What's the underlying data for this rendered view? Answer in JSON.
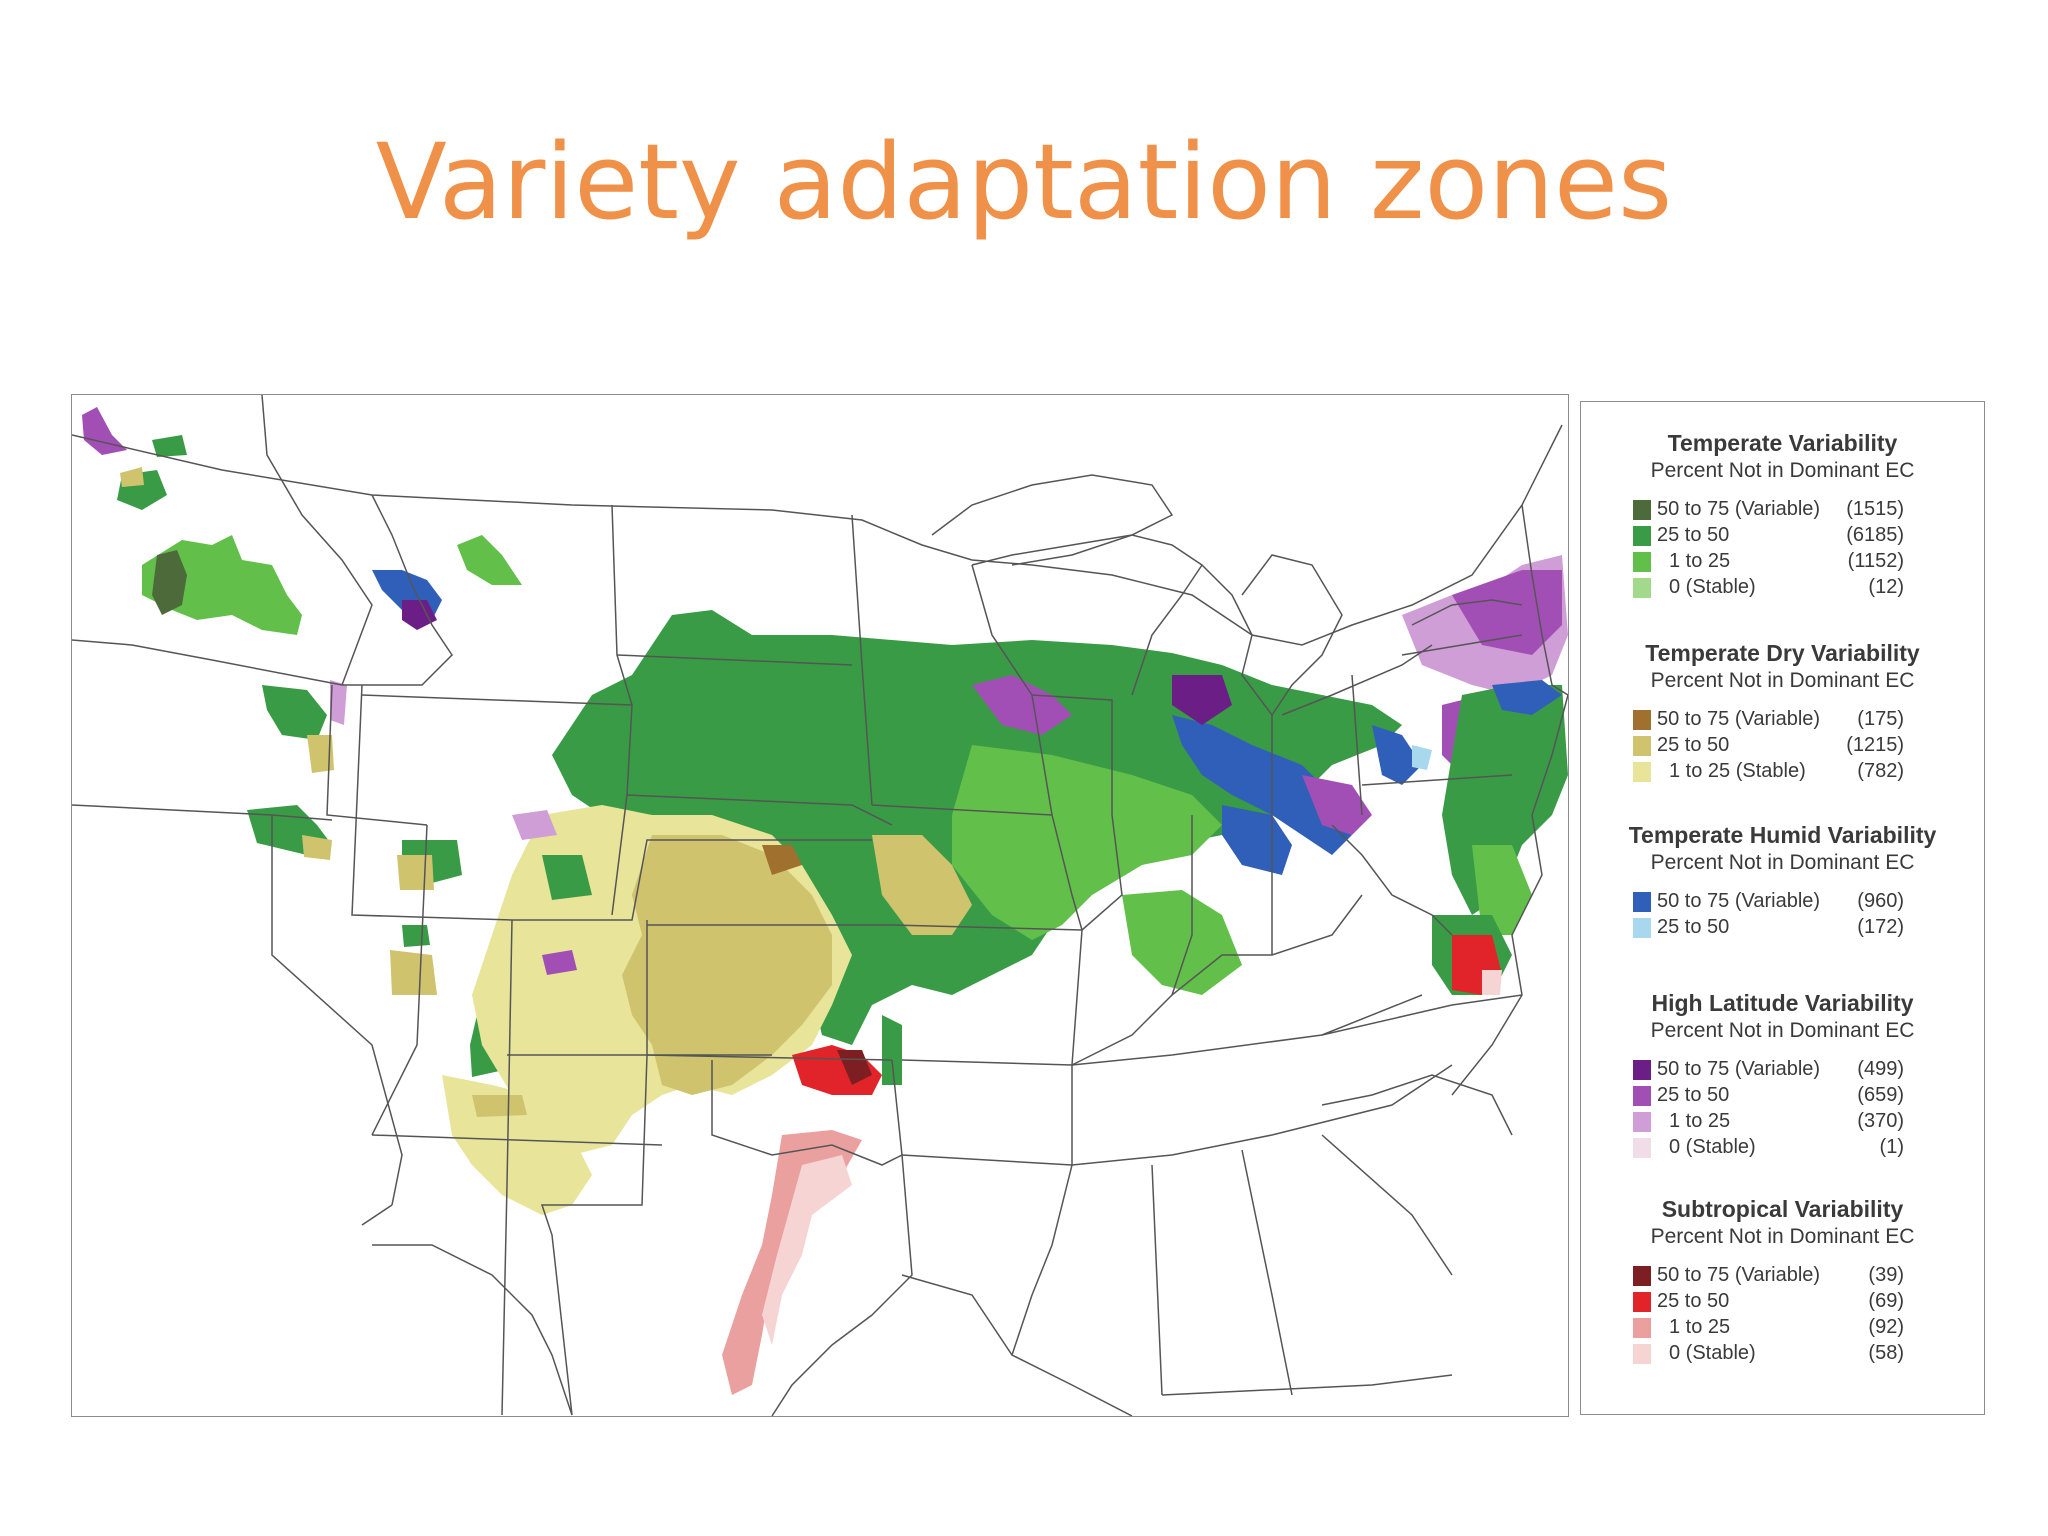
{
  "slide": {
    "title": "Variety adaptation zones"
  },
  "colors": {
    "title": "#f0914a",
    "state_border": "#555555",
    "temperate": [
      "#4d6b3a",
      "#3a9b46",
      "#62c04a",
      "#a3d98a"
    ],
    "temperate_dry": [
      "#a0702e",
      "#cfc36e",
      "#e8e49a"
    ],
    "temperate_humid": [
      "#2f5fb8",
      "#a8d8ee"
    ],
    "high_latitude": [
      "#6b1e86",
      "#a24fb5",
      "#cf9ed6",
      "#f0dde8"
    ],
    "subtropical": [
      "#7d1f22",
      "#e0242a",
      "#eba0a0",
      "#f6d4d4"
    ]
  },
  "legend": {
    "sections": [
      {
        "title": "Temperate Variability",
        "subtitle": "Percent Not in Dominant EC",
        "rows": [
          {
            "label": "50 to 75 (Variable)",
            "count": "(1515)",
            "color": "#4d6b3a"
          },
          {
            "label": "25 to 50",
            "count": "(6185)",
            "color": "#3a9b46"
          },
          {
            "label": "1 to 25",
            "count": "(1152)",
            "color": "#62c04a"
          },
          {
            "label": "0 (Stable)",
            "count": "(12)",
            "color": "#a3d98a"
          }
        ]
      },
      {
        "title": "Temperate Dry Variability",
        "subtitle": "Percent Not in Dominant EC",
        "rows": [
          {
            "label": "50 to 75 (Variable)",
            "count": "(175)",
            "color": "#a0702e"
          },
          {
            "label": "25 to 50",
            "count": "(1215)",
            "color": "#cfc36e"
          },
          {
            "label": "1 to 25 (Stable)",
            "count": "(782)",
            "color": "#e8e49a"
          }
        ]
      },
      {
        "title": "Temperate Humid Variability",
        "subtitle": "Percent Not in Dominant EC",
        "rows": [
          {
            "label": "50 to 75 (Variable)",
            "count": "(960)",
            "color": "#2f5fb8"
          },
          {
            "label": "25 to 50",
            "count": "(172)",
            "color": "#a8d8ee"
          }
        ]
      },
      {
        "title": "High Latitude Variability",
        "subtitle": "Percent Not in Dominant EC",
        "rows": [
          {
            "label": "50 to 75 (Variable)",
            "count": "(499)",
            "color": "#6b1e86"
          },
          {
            "label": "25 to 50",
            "count": "(659)",
            "color": "#a24fb5"
          },
          {
            "label": "1 to 25",
            "count": "(370)",
            "color": "#cf9ed6"
          },
          {
            "label": "0 (Stable)",
            "count": "(1)",
            "color": "#f0dde8"
          }
        ]
      },
      {
        "title": "Subtropical Variability",
        "subtitle": "Percent Not in Dominant EC",
        "rows": [
          {
            "label": "50 to 75 (Variable)",
            "count": "(39)",
            "color": "#7d1f22"
          },
          {
            "label": "25 to 50",
            "count": "(69)",
            "color": "#e0242a"
          },
          {
            "label": "1 to 25",
            "count": "(92)",
            "color": "#eba0a0"
          },
          {
            "label": "0 (Stable)",
            "count": "(58)",
            "color": "#f6d4d4"
          }
        ]
      }
    ]
  }
}
